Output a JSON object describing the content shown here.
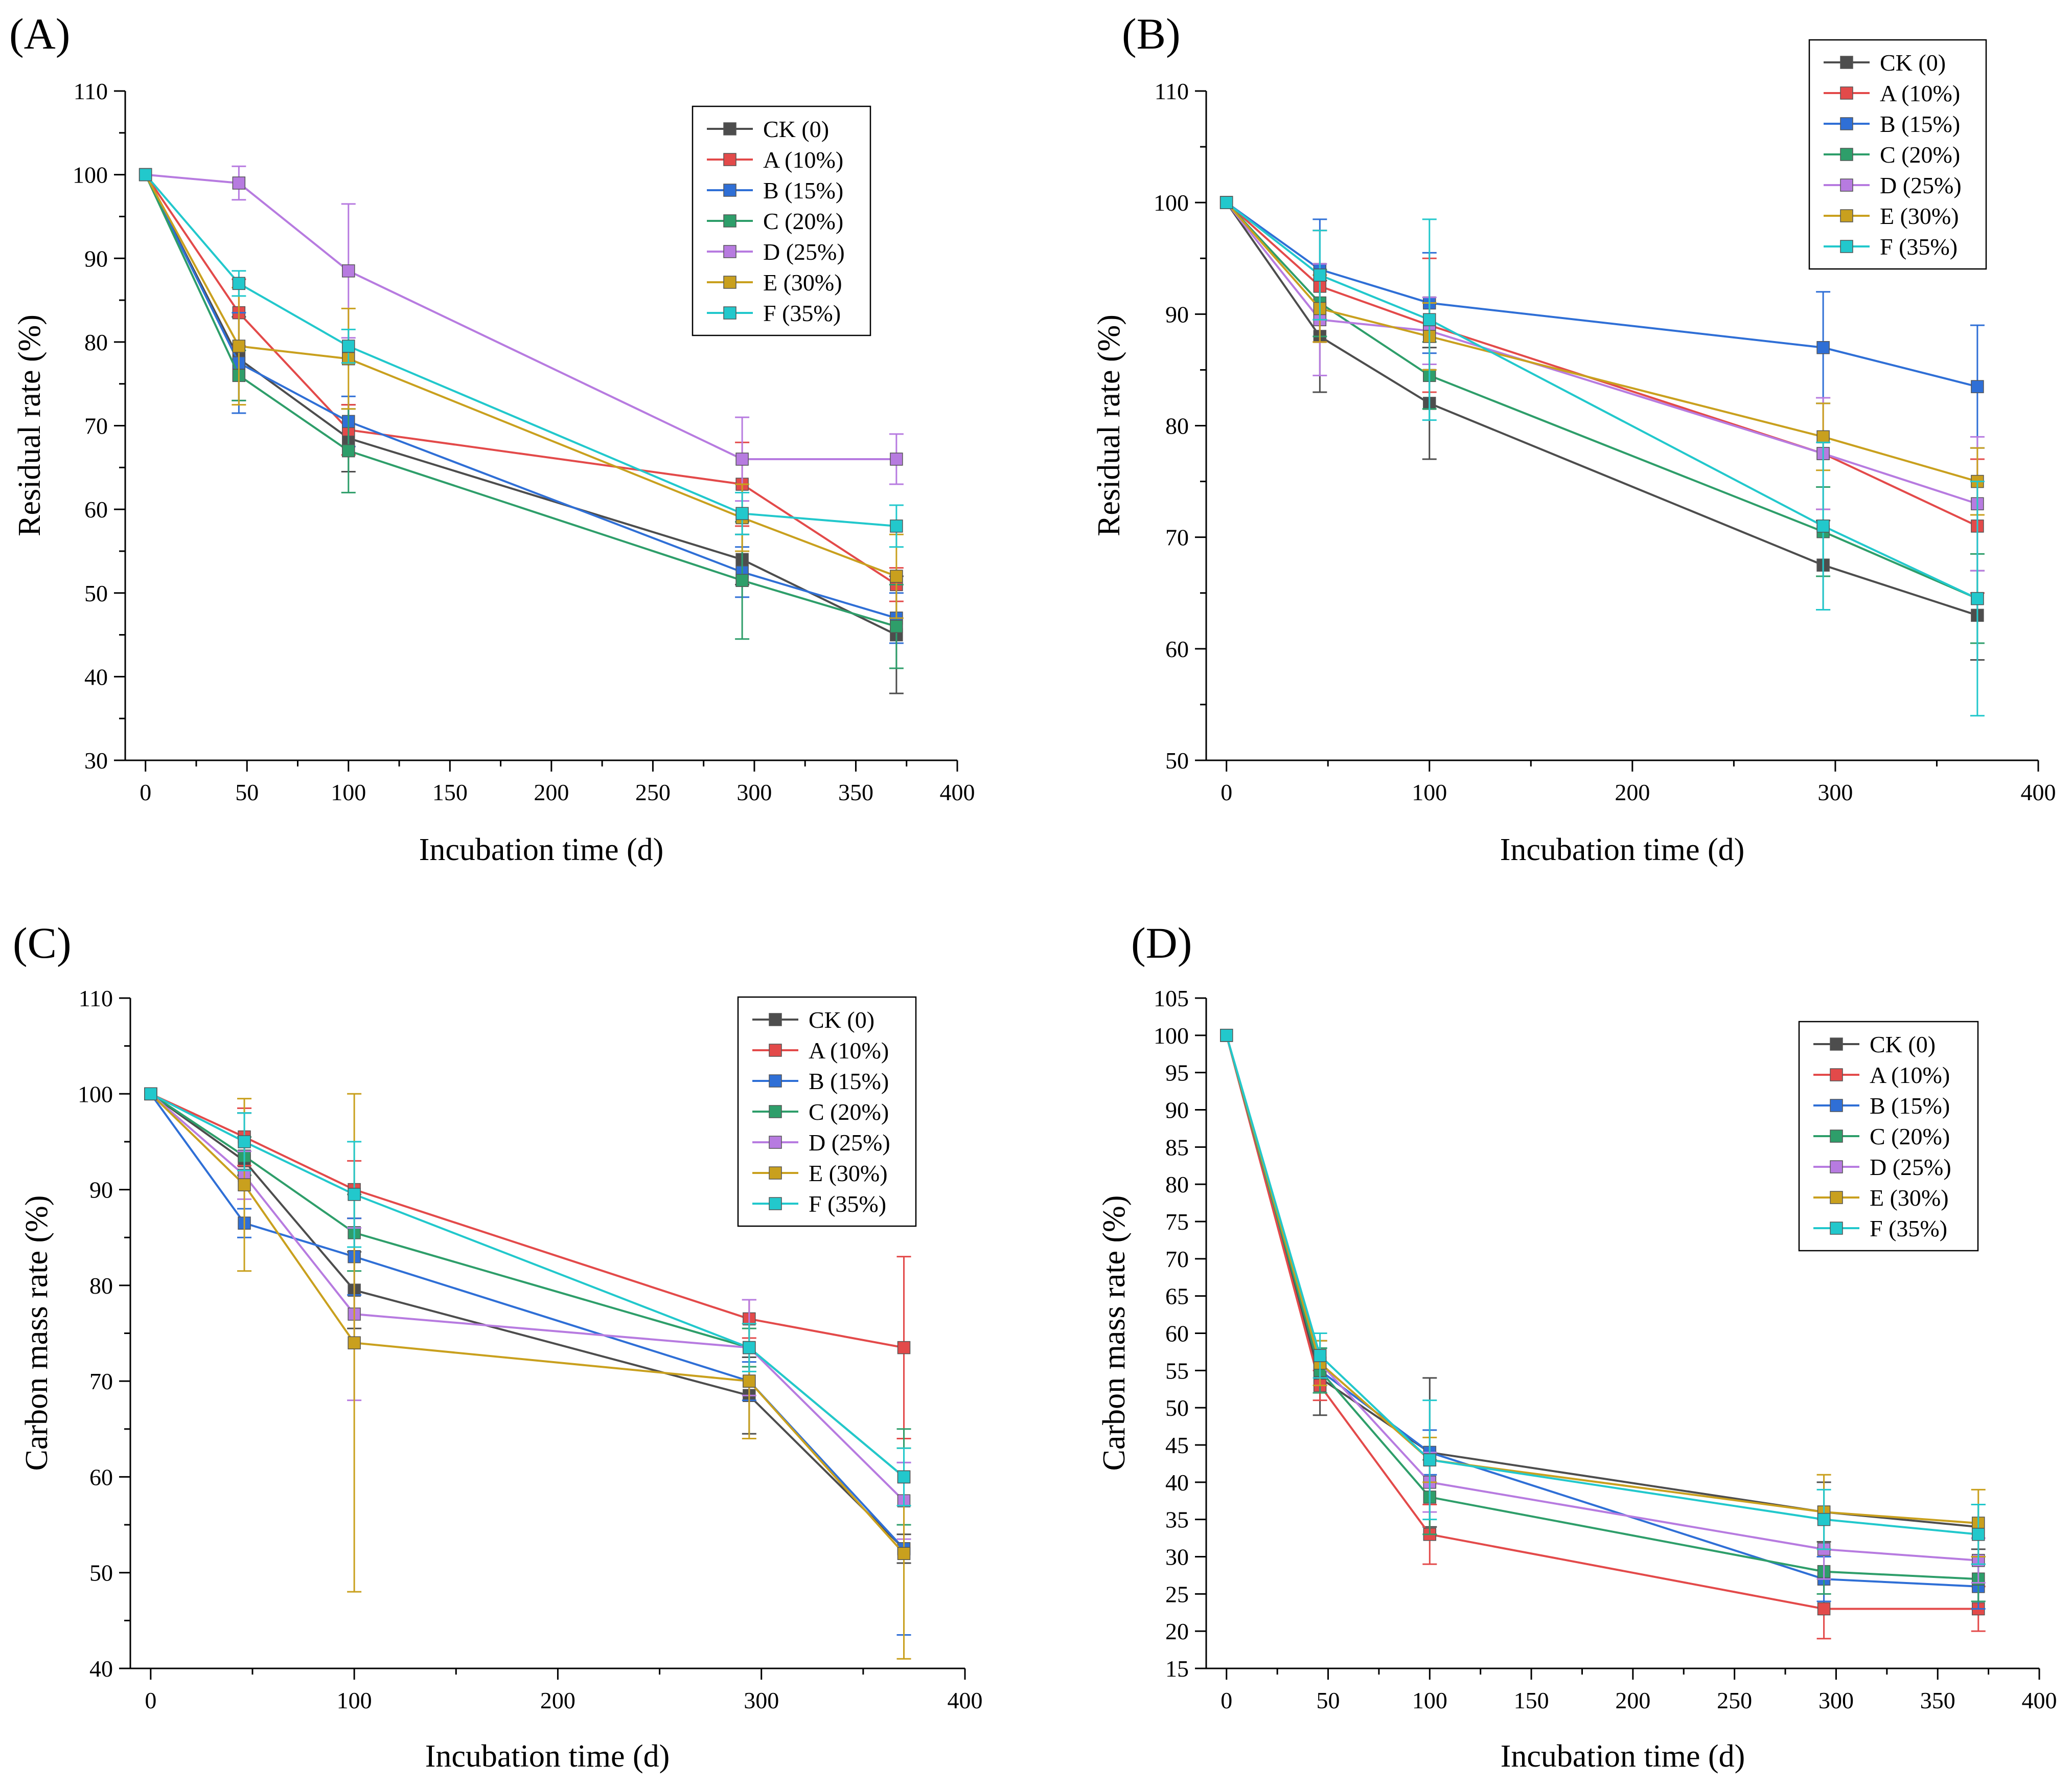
{
  "series_styles": [
    {
      "name": "CK (0)",
      "color": "#4d4d4d"
    },
    {
      "name": "A (10%)",
      "color": "#e34a4a"
    },
    {
      "name": "B (15%)",
      "color": "#2f6fd6"
    },
    {
      "name": "C (20%)",
      "color": "#2e9e6a"
    },
    {
      "name": "D (25%)",
      "color": "#b77be0"
    },
    {
      "name": "E (30%)",
      "color": "#c9a01e"
    },
    {
      "name": "F (35%)",
      "color": "#22c8cc"
    }
  ],
  "chart_data": [
    {
      "panel": "(A)",
      "type": "line",
      "xlabel": "Incubation time (d)",
      "ylabel": "Residual rate (%)",
      "xlim": [
        -10,
        400
      ],
      "ylim": [
        30,
        110
      ],
      "xticks": [
        0,
        50,
        100,
        150,
        200,
        250,
        300,
        350,
        400
      ],
      "yticks": [
        30,
        40,
        50,
        60,
        70,
        80,
        90,
        100,
        110
      ],
      "legend_position": "top-right",
      "x": [
        0,
        46,
        100,
        294,
        370
      ],
      "series": [
        {
          "name": "CK (0)",
          "values": [
            100,
            78,
            68.5,
            54,
            45
          ],
          "errors": [
            0,
            5,
            4,
            3,
            7
          ]
        },
        {
          "name": "A (10%)",
          "values": [
            100,
            83.5,
            69.5,
            63,
            51
          ],
          "errors": [
            0,
            4,
            3,
            5,
            2
          ]
        },
        {
          "name": "B (15%)",
          "values": [
            100,
            77.5,
            70.5,
            52.5,
            47
          ],
          "errors": [
            0,
            6,
            3,
            3,
            3
          ]
        },
        {
          "name": "C (20%)",
          "values": [
            100,
            76,
            67,
            51.5,
            46
          ],
          "errors": [
            0,
            3,
            5,
            7,
            5
          ]
        },
        {
          "name": "D (25%)",
          "values": [
            100,
            99,
            88.5,
            66,
            66
          ],
          "errors": [
            0,
            2,
            8,
            5,
            3
          ]
        },
        {
          "name": "E (30%)",
          "values": [
            100,
            79.5,
            78,
            59,
            52
          ],
          "errors": [
            0,
            7,
            6,
            4,
            5
          ]
        },
        {
          "name": "F (35%)",
          "values": [
            100,
            87,
            79.5,
            59.5,
            58
          ],
          "errors": [
            0,
            1.5,
            2,
            2.5,
            2.5
          ]
        }
      ]
    },
    {
      "panel": "(B)",
      "type": "line",
      "xlabel": "Incubation time (d)",
      "ylabel": "Residual rate (%)",
      "xlim": [
        -10,
        400
      ],
      "ylim": [
        50,
        110
      ],
      "xticks": [
        0,
        100,
        200,
        300,
        400
      ],
      "yticks": [
        50,
        60,
        70,
        80,
        90,
        100,
        110
      ],
      "legend_position": "top-right",
      "x": [
        0,
        46,
        100,
        294,
        370
      ],
      "series": [
        {
          "name": "CK (0)",
          "values": [
            100,
            88,
            82,
            67.5,
            63
          ],
          "errors": [
            0,
            5,
            5,
            4,
            4
          ]
        },
        {
          "name": "A (10%)",
          "values": [
            100,
            92.5,
            89,
            77.5,
            71
          ],
          "errors": [
            0,
            5,
            6,
            5,
            6
          ]
        },
        {
          "name": "B (15%)",
          "values": [
            100,
            94,
            91,
            87,
            83.5
          ],
          "errors": [
            0,
            4.5,
            4.5,
            5,
            5.5
          ]
        },
        {
          "name": "C (20%)",
          "values": [
            100,
            91,
            84.5,
            70.5,
            64.5
          ],
          "errors": [
            0,
            3,
            3,
            4,
            4
          ]
        },
        {
          "name": "D (25%)",
          "values": [
            100,
            89.5,
            88.5,
            77.5,
            73
          ],
          "errors": [
            0,
            5,
            3,
            5,
            6
          ]
        },
        {
          "name": "E (30%)",
          "values": [
            100,
            90.5,
            88,
            79,
            75
          ],
          "errors": [
            0,
            3,
            3,
            3,
            3
          ]
        },
        {
          "name": "F (35%)",
          "values": [
            100,
            93.5,
            89.5,
            71,
            64.5
          ],
          "errors": [
            0,
            4,
            9,
            7.5,
            10.5
          ]
        }
      ]
    },
    {
      "panel": "(C)",
      "type": "line",
      "xlabel": "Incubation time (d)",
      "ylabel": "Carbon mass rate (%)",
      "xlim": [
        -10,
        400
      ],
      "ylim": [
        40,
        110
      ],
      "xticks": [
        0,
        100,
        200,
        300,
        400
      ],
      "yticks": [
        40,
        50,
        60,
        70,
        80,
        90,
        100,
        110
      ],
      "legend_position": "top-right",
      "x": [
        0,
        46,
        100,
        294,
        370
      ],
      "series": [
        {
          "name": "CK (0)",
          "values": [
            100,
            93,
            79.5,
            68.5,
            52.5
          ],
          "errors": [
            0,
            5,
            4,
            4,
            1.5
          ]
        },
        {
          "name": "A (10%)",
          "values": [
            100,
            95.5,
            90,
            76.5,
            73.5
          ],
          "errors": [
            0,
            3,
            3,
            2,
            9.5
          ]
        },
        {
          "name": "B (15%)",
          "values": [
            100,
            86.5,
            83,
            70,
            52.5
          ],
          "errors": [
            0,
            1.5,
            4,
            2,
            9
          ]
        },
        {
          "name": "C (20%)",
          "values": [
            100,
            93.5,
            85.5,
            73.5,
            60
          ],
          "errors": [
            0,
            2,
            4,
            2,
            5
          ]
        },
        {
          "name": "D (25%)",
          "values": [
            100,
            91.5,
            77,
            73.5,
            57.5
          ],
          "errors": [
            0,
            2.5,
            9,
            5,
            4
          ]
        },
        {
          "name": "E (30%)",
          "values": [
            100,
            90.5,
            74,
            70,
            52
          ],
          "errors": [
            0,
            9,
            26,
            6,
            11
          ]
        },
        {
          "name": "F (35%)",
          "values": [
            100,
            95,
            89.5,
            73.5,
            60
          ],
          "errors": [
            0,
            3,
            5.5,
            2.5,
            3
          ]
        }
      ]
    },
    {
      "panel": "(D)",
      "type": "line",
      "xlabel": "Incubation time (d)",
      "ylabel": "Carbon mass rate (%)",
      "xlim": [
        -10,
        400
      ],
      "ylim": [
        15,
        105
      ],
      "xticks": [
        0,
        50,
        100,
        150,
        200,
        250,
        300,
        350,
        400
      ],
      "yticks": [
        15,
        20,
        25,
        30,
        35,
        40,
        45,
        50,
        55,
        60,
        65,
        70,
        75,
        80,
        85,
        90,
        95,
        100,
        105
      ],
      "legend_position": "top-right",
      "x": [
        0,
        46,
        100,
        294,
        370
      ],
      "series": [
        {
          "name": "CK (0)",
          "values": [
            100,
            54,
            44,
            36,
            34
          ],
          "errors": [
            0,
            5,
            10,
            4,
            3
          ]
        },
        {
          "name": "A (10%)",
          "values": [
            100,
            53,
            33,
            23,
            23
          ],
          "errors": [
            0,
            2,
            4,
            4,
            3
          ]
        },
        {
          "name": "B (15%)",
          "values": [
            100,
            55,
            44,
            27,
            26
          ],
          "errors": [
            0,
            3,
            3,
            3,
            3
          ]
        },
        {
          "name": "C (20%)",
          "values": [
            100,
            55,
            38,
            28,
            27
          ],
          "errors": [
            0,
            3,
            5,
            3,
            3
          ]
        },
        {
          "name": "D (25%)",
          "values": [
            100,
            56,
            40,
            31,
            29.5
          ],
          "errors": [
            0,
            3,
            4,
            4,
            3
          ]
        },
        {
          "name": "E (30%)",
          "values": [
            100,
            56,
            43,
            36,
            34.5
          ],
          "errors": [
            0,
            3,
            3,
            5,
            4.5
          ]
        },
        {
          "name": "F (35%)",
          "values": [
            100,
            57,
            43,
            35,
            33
          ],
          "errors": [
            0,
            3,
            8,
            4,
            4
          ]
        }
      ]
    }
  ]
}
